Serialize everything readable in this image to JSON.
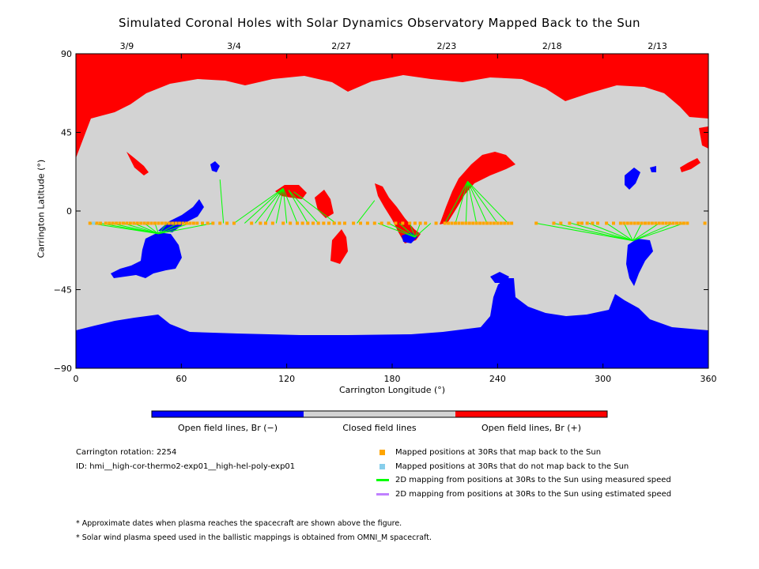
{
  "chart_data": {
    "type": "heatmap",
    "title": "Simulated Coronal Holes with Solar Dynamics Observatory Mapped Back to the Sun",
    "xlabel": "Carrington Longitude (°)",
    "ylabel": "Carrington Latitude (°)",
    "xlim": [
      0,
      360
    ],
    "ylim": [
      -90,
      90
    ],
    "x_ticks": [
      "0",
      "60",
      "120",
      "180",
      "240",
      "300",
      "360"
    ],
    "y_ticks": [
      "90",
      "45",
      "0",
      "−45",
      "−90"
    ],
    "x_tick_values": [
      0,
      60,
      120,
      180,
      240,
      300,
      360
    ],
    "y_tick_values": [
      90,
      45,
      0,
      -45,
      -90
    ],
    "top_axis_dates": [
      {
        "label": "3/9",
        "lon": 29
      },
      {
        "label": "3/4",
        "lon": 90
      },
      {
        "label": "2/27",
        "lon": 151
      },
      {
        "label": "2/23",
        "lon": 211
      },
      {
        "label": "2/18",
        "lon": 271
      },
      {
        "label": "2/13",
        "lon": 331
      }
    ],
    "colorbar": [
      {
        "label": "Open field lines, Br (−)",
        "color": "#0000ff"
      },
      {
        "label": "Closed field lines",
        "color": "#d3d3d3"
      },
      {
        "label": "Open field lines, Br (+)",
        "color": "#ff0000"
      }
    ],
    "spacecraft_track_lat": -7,
    "mapped_positions_lon": [
      8,
      10,
      12,
      14,
      17,
      19,
      21,
      23,
      25,
      27,
      29,
      31,
      33,
      35,
      37,
      39,
      41,
      43,
      45,
      47,
      49,
      51,
      53,
      55,
      57,
      59,
      61,
      63,
      65,
      67,
      69,
      72,
      75,
      78,
      82,
      86,
      90,
      100,
      105,
      108,
      112,
      118,
      122,
      126,
      129,
      132,
      135,
      138,
      141,
      144,
      147,
      150,
      153,
      158,
      162,
      166,
      170,
      174,
      178,
      182,
      186,
      190,
      193,
      196,
      199,
      205,
      210,
      212,
      214,
      216,
      218,
      220,
      222,
      224,
      226,
      228,
      230,
      232,
      234,
      236,
      238,
      240,
      242,
      244,
      246,
      248,
      262,
      272,
      276,
      281,
      286,
      288,
      291,
      294,
      297,
      302,
      306,
      310,
      312,
      314,
      316,
      318,
      320,
      322,
      324,
      326,
      328,
      330,
      332,
      334,
      336,
      338,
      340,
      342,
      344,
      346,
      348,
      358
    ],
    "unmapped_positions_lon": [
      10
    ],
    "mapping_lines": [
      {
        "from": [
          8,
          -7
        ],
        "to": [
          47,
          -13
        ]
      },
      {
        "from": [
          14,
          -7
        ],
        "to": [
          47,
          -13
        ]
      },
      {
        "from": [
          20,
          -7
        ],
        "to": [
          47,
          -13
        ]
      },
      {
        "from": [
          27,
          -7
        ],
        "to": [
          47,
          -13
        ]
      },
      {
        "from": [
          33,
          -7
        ],
        "to": [
          47,
          -13
        ]
      },
      {
        "from": [
          39,
          -7
        ],
        "to": [
          47,
          -13
        ]
      },
      {
        "from": [
          45,
          -7
        ],
        "to": [
          47,
          -13
        ]
      },
      {
        "from": [
          52,
          -7
        ],
        "to": [
          47,
          -13
        ]
      },
      {
        "from": [
          58,
          -7
        ],
        "to": [
          47,
          -13
        ]
      },
      {
        "from": [
          65,
          -7
        ],
        "to": [
          47,
          -13
        ]
      },
      {
        "from": [
          78,
          -7
        ],
        "to": [
          47,
          -13
        ]
      },
      {
        "from": [
          84,
          -7
        ],
        "to": [
          82,
          18
        ]
      },
      {
        "from": [
          90,
          -7
        ],
        "to": [
          118,
          13
        ]
      },
      {
        "from": [
          96,
          -7
        ],
        "to": [
          118,
          13
        ]
      },
      {
        "from": [
          102,
          -7
        ],
        "to": [
          118,
          13
        ]
      },
      {
        "from": [
          108,
          -7
        ],
        "to": [
          118,
          13
        ]
      },
      {
        "from": [
          114,
          -7
        ],
        "to": [
          118,
          13
        ]
      },
      {
        "from": [
          120,
          -7
        ],
        "to": [
          118,
          13
        ]
      },
      {
        "from": [
          126,
          -7
        ],
        "to": [
          118,
          13
        ]
      },
      {
        "from": [
          132,
          -7
        ],
        "to": [
          121,
          12
        ]
      },
      {
        "from": [
          138,
          -7
        ],
        "to": [
          121,
          12
        ]
      },
      {
        "from": [
          148,
          -7
        ],
        "to": [
          124,
          11
        ]
      },
      {
        "from": [
          160,
          -7
        ],
        "to": [
          170,
          6
        ]
      },
      {
        "from": [
          172,
          -7
        ],
        "to": [
          193,
          -15
        ]
      },
      {
        "from": [
          178,
          -7
        ],
        "to": [
          193,
          -15
        ]
      },
      {
        "from": [
          184,
          -7
        ],
        "to": [
          193,
          -15
        ]
      },
      {
        "from": [
          190,
          -7
        ],
        "to": [
          193,
          -15
        ]
      },
      {
        "from": [
          196,
          -7
        ],
        "to": [
          193,
          -15
        ]
      },
      {
        "from": [
          202,
          -7
        ],
        "to": [
          193,
          -15
        ]
      },
      {
        "from": [
          210,
          -7
        ],
        "to": [
          223,
          17
        ]
      },
      {
        "from": [
          216,
          -7
        ],
        "to": [
          223,
          17
        ]
      },
      {
        "from": [
          222,
          -7
        ],
        "to": [
          223,
          17
        ]
      },
      {
        "from": [
          228,
          -7
        ],
        "to": [
          223,
          17
        ]
      },
      {
        "from": [
          234,
          -7
        ],
        "to": [
          223,
          17
        ]
      },
      {
        "from": [
          240,
          -7
        ],
        "to": [
          223,
          17
        ]
      },
      {
        "from": [
          246,
          -7
        ],
        "to": [
          223,
          17
        ]
      },
      {
        "from": [
          262,
          -7
        ],
        "to": [
          317,
          -17
        ]
      },
      {
        "from": [
          272,
          -7
        ],
        "to": [
          317,
          -17
        ]
      },
      {
        "from": [
          282,
          -7
        ],
        "to": [
          317,
          -17
        ]
      },
      {
        "from": [
          292,
          -7
        ],
        "to": [
          317,
          -17
        ]
      },
      {
        "from": [
          302,
          -7
        ],
        "to": [
          317,
          -17
        ]
      },
      {
        "from": [
          312,
          -7
        ],
        "to": [
          317,
          -17
        ]
      },
      {
        "from": [
          322,
          -7
        ],
        "to": [
          317,
          -17
        ]
      },
      {
        "from": [
          332,
          -7
        ],
        "to": [
          317,
          -17
        ]
      },
      {
        "from": [
          340,
          -7
        ],
        "to": [
          317,
          -17
        ]
      },
      {
        "from": [
          346,
          -7
        ],
        "to": [
          317,
          -17
        ]
      }
    ]
  },
  "legend": {
    "items": [
      {
        "label": "Mapped positions at 30Rs that map back to the Sun",
        "color": "#ffa500",
        "kind": "square"
      },
      {
        "label": "Mapped positions at 30Rs that do not map back to the Sun",
        "color": "#87ceeb",
        "kind": "square"
      },
      {
        "label": "2D mapping from positions at 30Rs to the Sun using measured speed",
        "color": "#00ff00",
        "kind": "line"
      },
      {
        "label": "2D mapping from positions at 30Rs to the Sun using estimated speed",
        "color": "#c080ff",
        "kind": "line"
      }
    ]
  },
  "info": {
    "rotation": "Carrington rotation: 2254",
    "id": "ID: hmi__high-cor-thermo2-exp01__high-hel-poly-exp01"
  },
  "notes": [
    "* Approximate dates when plasma reaches the spacecraft are shown above the figure.",
    "* Solar wind plasma speed used in the ballistic mappings is obtained from OMNI_M spacecraft."
  ]
}
